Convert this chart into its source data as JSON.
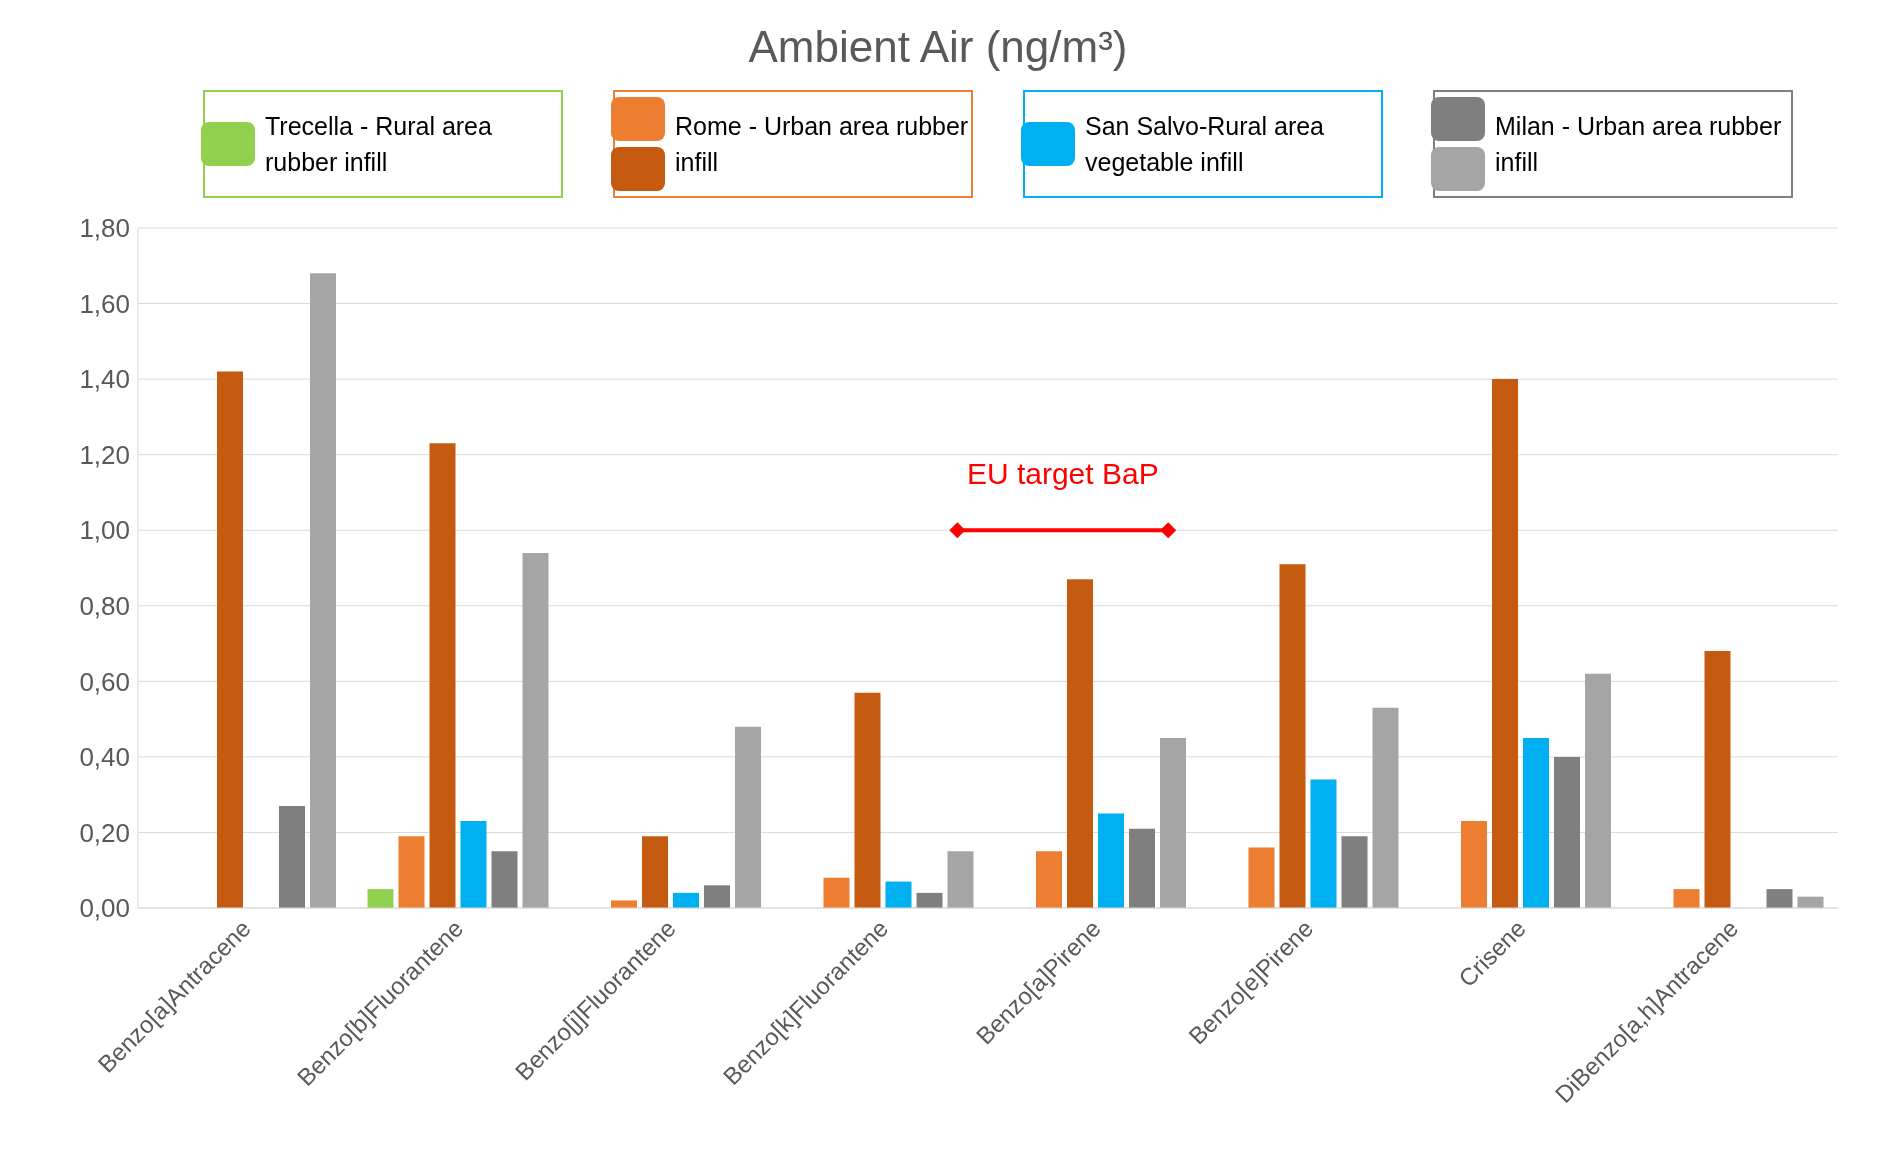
{
  "chart_data": {
    "type": "bar",
    "title": "Ambient Air (ng/m³)",
    "categories": [
      "Benzo[a]Antracene",
      "Benzo[b]Fluorantene",
      "Benzo[j]Fluorantene",
      "Benzo[k]Fluorantene",
      "Benzo[a]Pirene",
      "Benzo[e]Pirene",
      "Crisene",
      "DiBenzo[a,h]Antracene"
    ],
    "series": [
      {
        "name": "Trecella - Rural area rubber infill",
        "color": "#92d050",
        "values": [
          null,
          0.05,
          null,
          null,
          null,
          null,
          null,
          null
        ]
      },
      {
        "name": "Rome - Urban area rubber infill",
        "color": "#ed7d31",
        "values": [
          null,
          0.19,
          0.02,
          0.08,
          0.15,
          0.16,
          0.23,
          0.05
        ]
      },
      {
        "color": "#c55a11",
        "values": [
          1.42,
          1.23,
          0.19,
          0.57,
          0.87,
          0.91,
          1.4,
          0.68
        ]
      },
      {
        "name": "San Salvo-Rural area vegetable infill",
        "color": "#00b0f0",
        "values": [
          null,
          0.23,
          0.04,
          0.07,
          0.25,
          0.34,
          0.45,
          null
        ]
      },
      {
        "name": "Milan - Urban area rubber infill",
        "color": "#7f7f7f",
        "values": [
          0.27,
          0.15,
          0.06,
          0.04,
          0.21,
          0.19,
          0.4,
          0.05
        ]
      },
      {
        "color": "#a5a5a5",
        "values": [
          1.68,
          0.94,
          0.48,
          0.15,
          0.45,
          0.53,
          0.62,
          0.03
        ]
      }
    ],
    "ylim": [
      0,
      1.8
    ],
    "yticks": [
      {
        "value": 0,
        "label": "0,00"
      },
      {
        "value": 0.2,
        "label": "0,20"
      },
      {
        "value": 0.4,
        "label": "0,40"
      },
      {
        "value": 0.6,
        "label": "0,60"
      },
      {
        "value": 0.8,
        "label": "0,80"
      },
      {
        "value": 1,
        "label": "1,00"
      },
      {
        "value": 1.2,
        "label": "1,20"
      },
      {
        "value": 1.4,
        "label": "1,40"
      },
      {
        "value": 1.6,
        "label": "1,60"
      },
      {
        "value": 1.8,
        "label": "1,80"
      }
    ],
    "grid": "y",
    "legend": "top",
    "ref_lines": [
      {
        "axis": "y",
        "value": 1,
        "label": "EU target BaP",
        "color": "#ff0000"
      }
    ]
  }
}
